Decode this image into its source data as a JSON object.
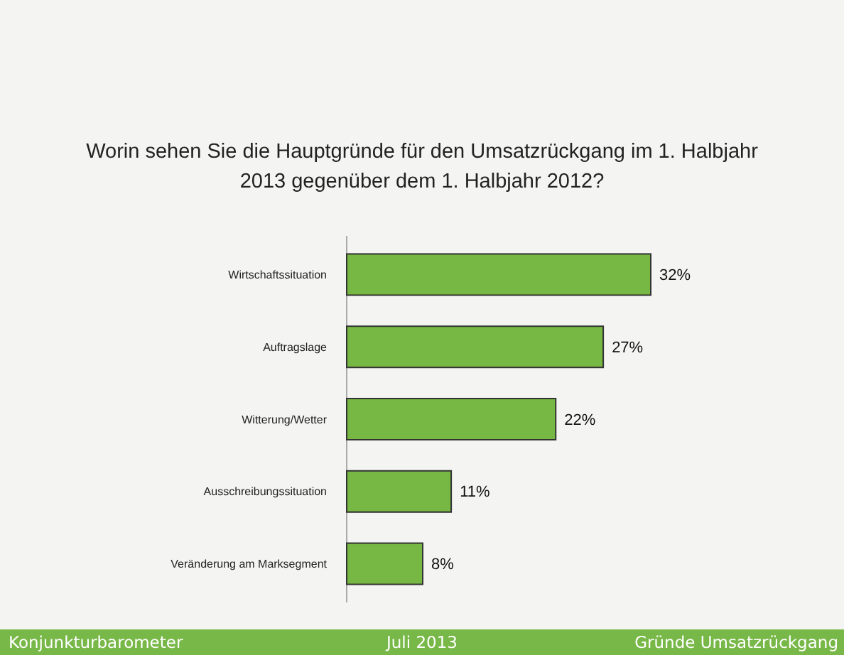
{
  "chart_data": {
    "type": "bar",
    "orientation": "horizontal",
    "title": "Worin sehen Sie die Hauptgründe für den Umsatzrückgang im 1. Halbjahr 2013 gegenüber dem 1. Halbjahr 2012?",
    "categories": [
      "Wirtschaftssituation",
      "Auftragslage",
      "Witterung/Wetter",
      "Ausschreibungssituation",
      "Veränderung am Marksegment"
    ],
    "values": [
      32,
      27,
      22,
      11,
      8
    ],
    "value_labels": [
      "32%",
      "27%",
      "22%",
      "11%",
      "8%"
    ],
    "color": "#76b843",
    "annotations": [
      "Konjunkturbarometer",
      "Juli 2013",
      "Gründe Umsatzrückgang"
    ]
  }
}
